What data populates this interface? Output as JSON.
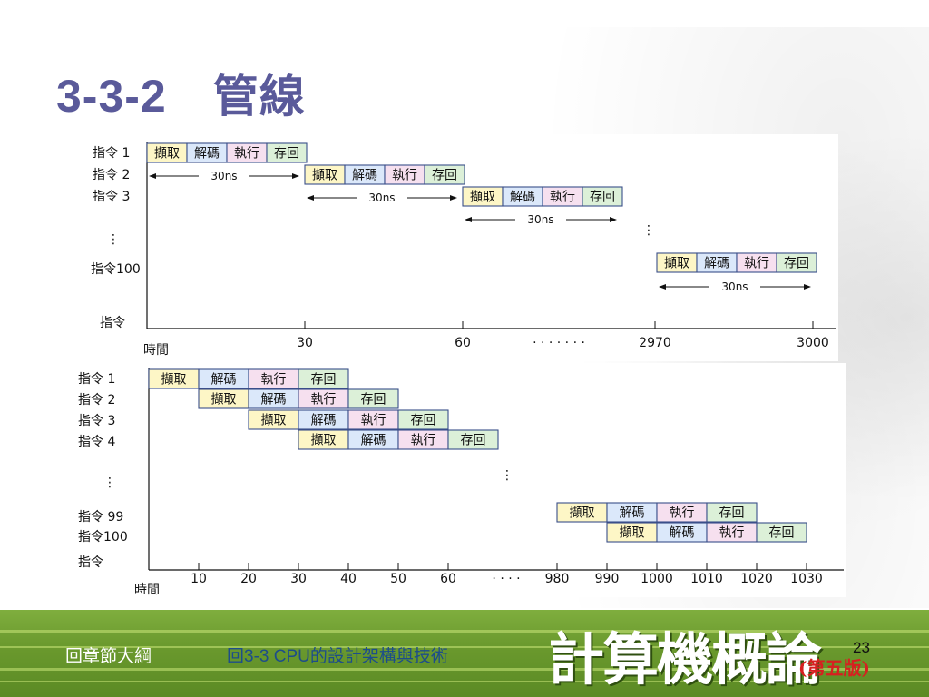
{
  "slide": {
    "title": "3-3-2　管線",
    "page_number": "23"
  },
  "stage_labels": [
    "擷取",
    "解碼",
    "執行",
    "存回"
  ],
  "stage_colors": [
    "#fdf6c6",
    "#dbe8fa",
    "#f6e0ef",
    "#dcf0d8"
  ],
  "diagram_sequential": {
    "row_labels": [
      "指令 1",
      "指令 2",
      "指令 3",
      "⋮",
      "指令100",
      "指令"
    ],
    "x_axis_label": "時間",
    "ticks": [
      "30",
      "60",
      "· · · · · · ·",
      "2970",
      "3000"
    ],
    "duration_label": "30ns"
  },
  "diagram_pipelined": {
    "row_labels": [
      "指令 1",
      "指令 2",
      "指令 3",
      "指令 4",
      "⋮",
      "指令 99",
      "指令100",
      "指令"
    ],
    "x_axis_label": "時間",
    "ticks": [
      "10",
      "20",
      "30",
      "40",
      "50",
      "60",
      "· · · ·",
      "980",
      "990",
      "1000",
      "1010",
      "1020",
      "1030"
    ]
  },
  "footer": {
    "link_outline": "回章節大綱",
    "link_section": "回3-3 CPU的設計架構與技術",
    "book_title": "計算機概論",
    "edition": "(第五版)"
  }
}
